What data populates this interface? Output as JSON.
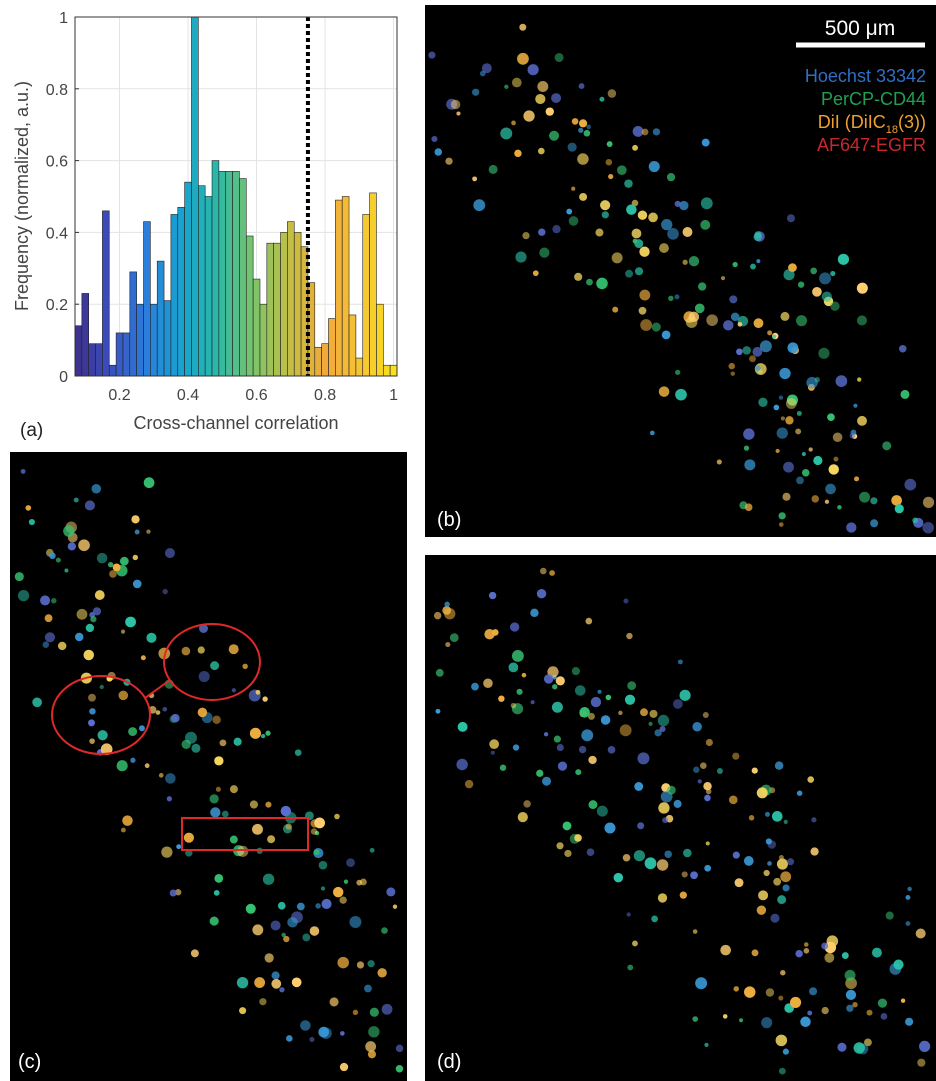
{
  "chart_data": {
    "type": "histogram",
    "panel_label": "(a)",
    "xlabel": "Cross-channel correlation",
    "ylabel": "Frequency (normalized, a.u.)",
    "bins": [
      0.07,
      0.09,
      0.11,
      0.13,
      0.15,
      0.17,
      0.19,
      0.21,
      0.23,
      0.25,
      0.27,
      0.29,
      0.31,
      0.33,
      0.35,
      0.37,
      0.39,
      0.41,
      0.43,
      0.45,
      0.47,
      0.49,
      0.51,
      0.53,
      0.55,
      0.57,
      0.59,
      0.61,
      0.63,
      0.65,
      0.67,
      0.69,
      0.71,
      0.73,
      0.75,
      0.77,
      0.79,
      0.81,
      0.83,
      0.85,
      0.87,
      0.89,
      0.91,
      0.93,
      0.95,
      0.97,
      0.99,
      1.01
    ],
    "values": [
      0.14,
      0.23,
      0.09,
      0.09,
      0.46,
      0.03,
      0.12,
      0.12,
      0.29,
      0.2,
      0.43,
      0.2,
      0.32,
      0.21,
      0.45,
      0.47,
      0.54,
      1.0,
      0.53,
      0.5,
      0.6,
      0.57,
      0.57,
      0.57,
      0.55,
      0.39,
      0.27,
      0.2,
      0.37,
      0.37,
      0.4,
      0.43,
      0.4,
      0.36,
      0.26,
      0.08,
      0.09,
      0.16,
      0.49,
      0.5,
      0.17,
      0.05,
      0.45,
      0.51,
      0.2,
      0.03,
      0.03
    ],
    "colormap": [
      "#3e2f8a",
      "#3b4fc0",
      "#2a7fdc",
      "#17a3cf",
      "#2cb9a6",
      "#7cc46a",
      "#c2bf45",
      "#f2a93a",
      "#f4c534",
      "#f9e21c"
    ],
    "threshold": 0.75,
    "xlim": [
      0.07,
      1.01
    ],
    "ylim": [
      0,
      1
    ],
    "xticks": [
      0.2,
      0.4,
      0.6,
      0.8,
      1
    ],
    "yticks": [
      0,
      0.2,
      0.4,
      0.6,
      0.8,
      1
    ],
    "grid": true
  },
  "panels": {
    "b": "(b)",
    "c": "(c)",
    "d": "(d)"
  },
  "scale_bar": "500 μm",
  "legend": [
    {
      "text": [
        "Hoechst 33342"
      ],
      "color": "#2f6fc6"
    },
    {
      "text": [
        "PerCP-CD44"
      ],
      "color": "#20a050"
    },
    {
      "text": [
        "DiI (DiIC",
        "18",
        "(3))"
      ],
      "color": "#f0a030"
    },
    {
      "text": [
        "AF647-EGFR"
      ],
      "color": "#c8282c"
    }
  ]
}
